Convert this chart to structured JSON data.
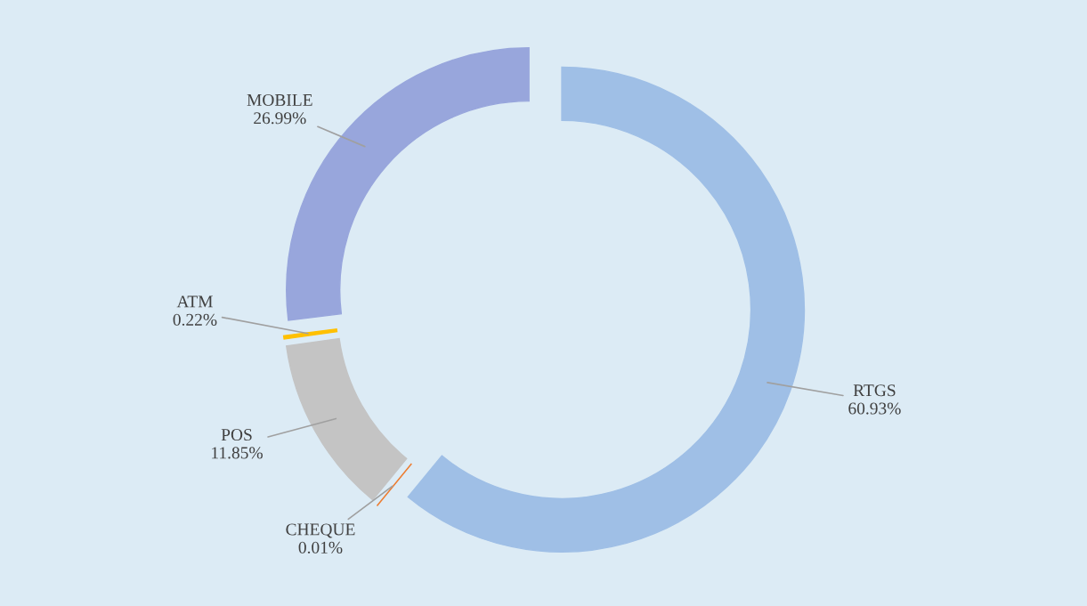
{
  "chart_data": {
    "type": "donut",
    "categories": [
      "RTGS",
      "CHEQUE",
      "POS",
      "ATM",
      "MOBILE"
    ],
    "values": [
      60.93,
      0.01,
      11.85,
      0.22,
      26.99
    ],
    "value_labels": [
      "60.93%",
      "0.01%",
      "11.85%",
      "0.22%",
      "26.99%"
    ],
    "colors": [
      "#9fbfe6",
      "#ed7d31",
      "#c4c4c4",
      "#ffc000",
      "#98a6dc"
    ],
    "legend": false
  }
}
